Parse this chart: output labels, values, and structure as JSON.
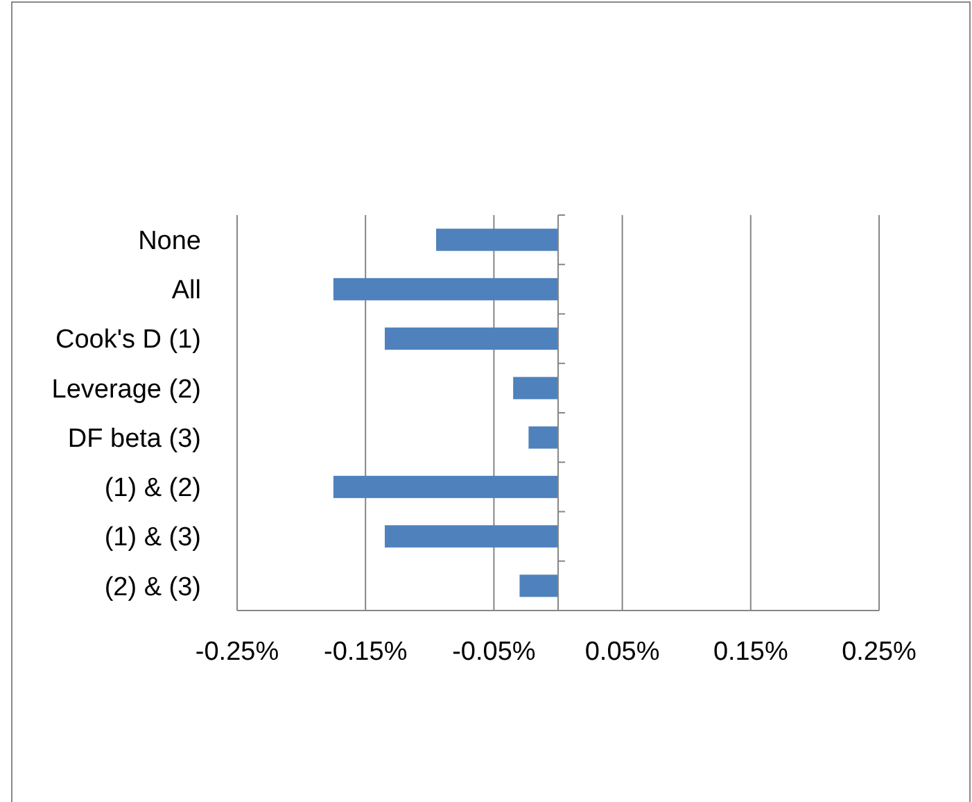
{
  "chart_data": {
    "type": "bar",
    "orientation": "horizontal",
    "categories": [
      "None",
      "All",
      "Cook's D (1)",
      "Leverage (2)",
      "DF beta (3)",
      "(1) & (2)",
      "(1) & (3)",
      "(2) & (3)"
    ],
    "values": [
      -0.095,
      -0.175,
      -0.135,
      -0.035,
      -0.023,
      -0.175,
      -0.135,
      -0.03
    ],
    "color": "#4f81bd",
    "xlim": [
      -0.25,
      0.25
    ],
    "xticks": [
      {
        "value": -0.25,
        "label": "-0.25%"
      },
      {
        "value": -0.15,
        "label": "-0.15%"
      },
      {
        "value": -0.05,
        "label": "-0.05%"
      },
      {
        "value": 0.05,
        "label": "0.05%"
      },
      {
        "value": 0.15,
        "label": "0.15%"
      },
      {
        "value": 0.25,
        "label": "0.25%"
      }
    ],
    "grid": "x"
  }
}
